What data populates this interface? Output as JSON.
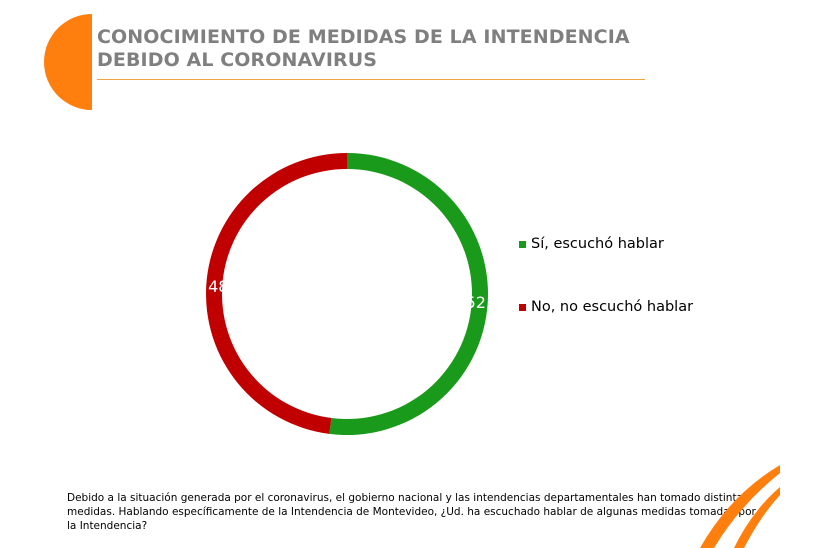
{
  "title": "CONOCIMIENTO DE MEDIDAS DE LA INTENDENCIA DEBIDO AL CORONAVIRUS",
  "note": "Debido a la situación generada por el coronavirus, el gobierno nacional y las intendencias departamentales han tomado distintas medidas. Hablando específicamente de la Intendencia de Montevideo, ¿Ud. ha escuchado hablar de algunas medidas tomadas por la Intendencia?",
  "colors": {
    "accent": "#ff7f0e",
    "title_line": "#f0a440"
  },
  "chart_data": {
    "type": "pie",
    "variant": "donut",
    "legend_position": "right",
    "slices": [
      {
        "label": "Sí, escuchó hablar",
        "value": 52,
        "color": "#1a9a1a"
      },
      {
        "label": "No, no  escuchó hablar",
        "value": 48,
        "color": "#c00000"
      }
    ]
  }
}
